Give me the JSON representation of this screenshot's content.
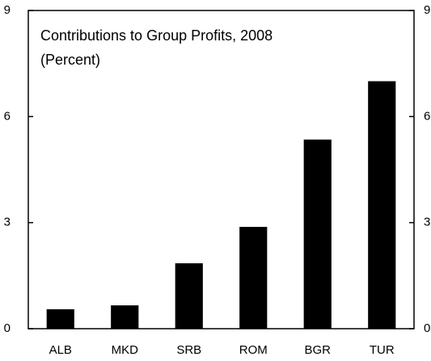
{
  "chart_data": {
    "type": "bar",
    "title": "Contributions to Group Profits, 2008",
    "subtitle": "(Percent)",
    "categories": [
      "ALB",
      "MKD",
      "SRB",
      "ROM",
      "BGR",
      "TUR"
    ],
    "values": [
      0.55,
      0.66,
      1.85,
      2.88,
      5.35,
      7.0
    ],
    "color": "#000000",
    "ylim": [
      0,
      9
    ],
    "yticks": [
      0,
      3,
      6,
      9
    ],
    "y2lim": [
      0,
      9
    ],
    "y2ticks": [
      0,
      3,
      6,
      9
    ],
    "grid": false
  }
}
